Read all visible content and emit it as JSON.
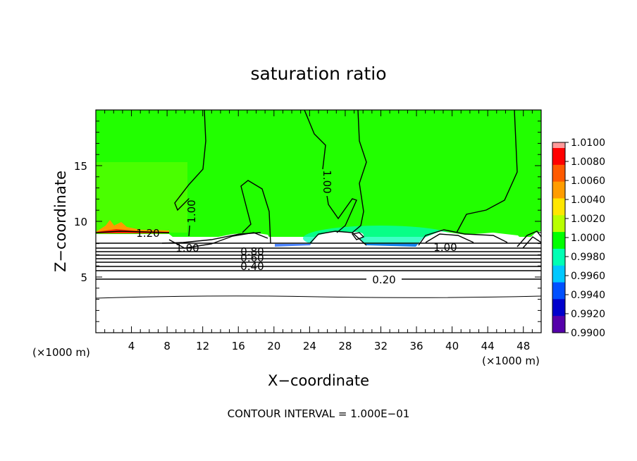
{
  "chart_data": {
    "type": "heatmap",
    "title": "saturation ratio",
    "xlabel": "X−coordinate",
    "ylabel": "Z−coordinate",
    "x_unit_left": "(×1000 m)",
    "x_unit_right": "(×1000 m)",
    "footer": "CONTOUR INTERVAL = 1.000E−01",
    "xlim": [
      0,
      50
    ],
    "ylim": [
      0,
      20
    ],
    "x_ticks": [
      "4",
      "8",
      "12",
      "16",
      "20",
      "24",
      "28",
      "32",
      "36",
      "40",
      "44",
      "48"
    ],
    "y_ticks": [
      "5",
      "10",
      "15"
    ],
    "contour_labels": [
      "1.00",
      "1.00",
      "1.20",
      "1.00",
      "1.00",
      "0.80",
      "0.60",
      "0.40",
      "0.20"
    ],
    "colorbar_labels": [
      "1.0100",
      "1.0080",
      "1.0060",
      "1.0040",
      "1.0020",
      "1.0000",
      "0.9980",
      "0.9960",
      "0.9940",
      "0.9920",
      "0.9900"
    ],
    "colorbar_colors": [
      "#ff9a9a",
      "#ff0000",
      "#ff5a00",
      "#ff9c00",
      "#ffe600",
      "#b8ff00",
      "#00ff00",
      "#00ffb4",
      "#00c8ff",
      "#0050ff",
      "#0000cc",
      "#5500aa"
    ]
  }
}
